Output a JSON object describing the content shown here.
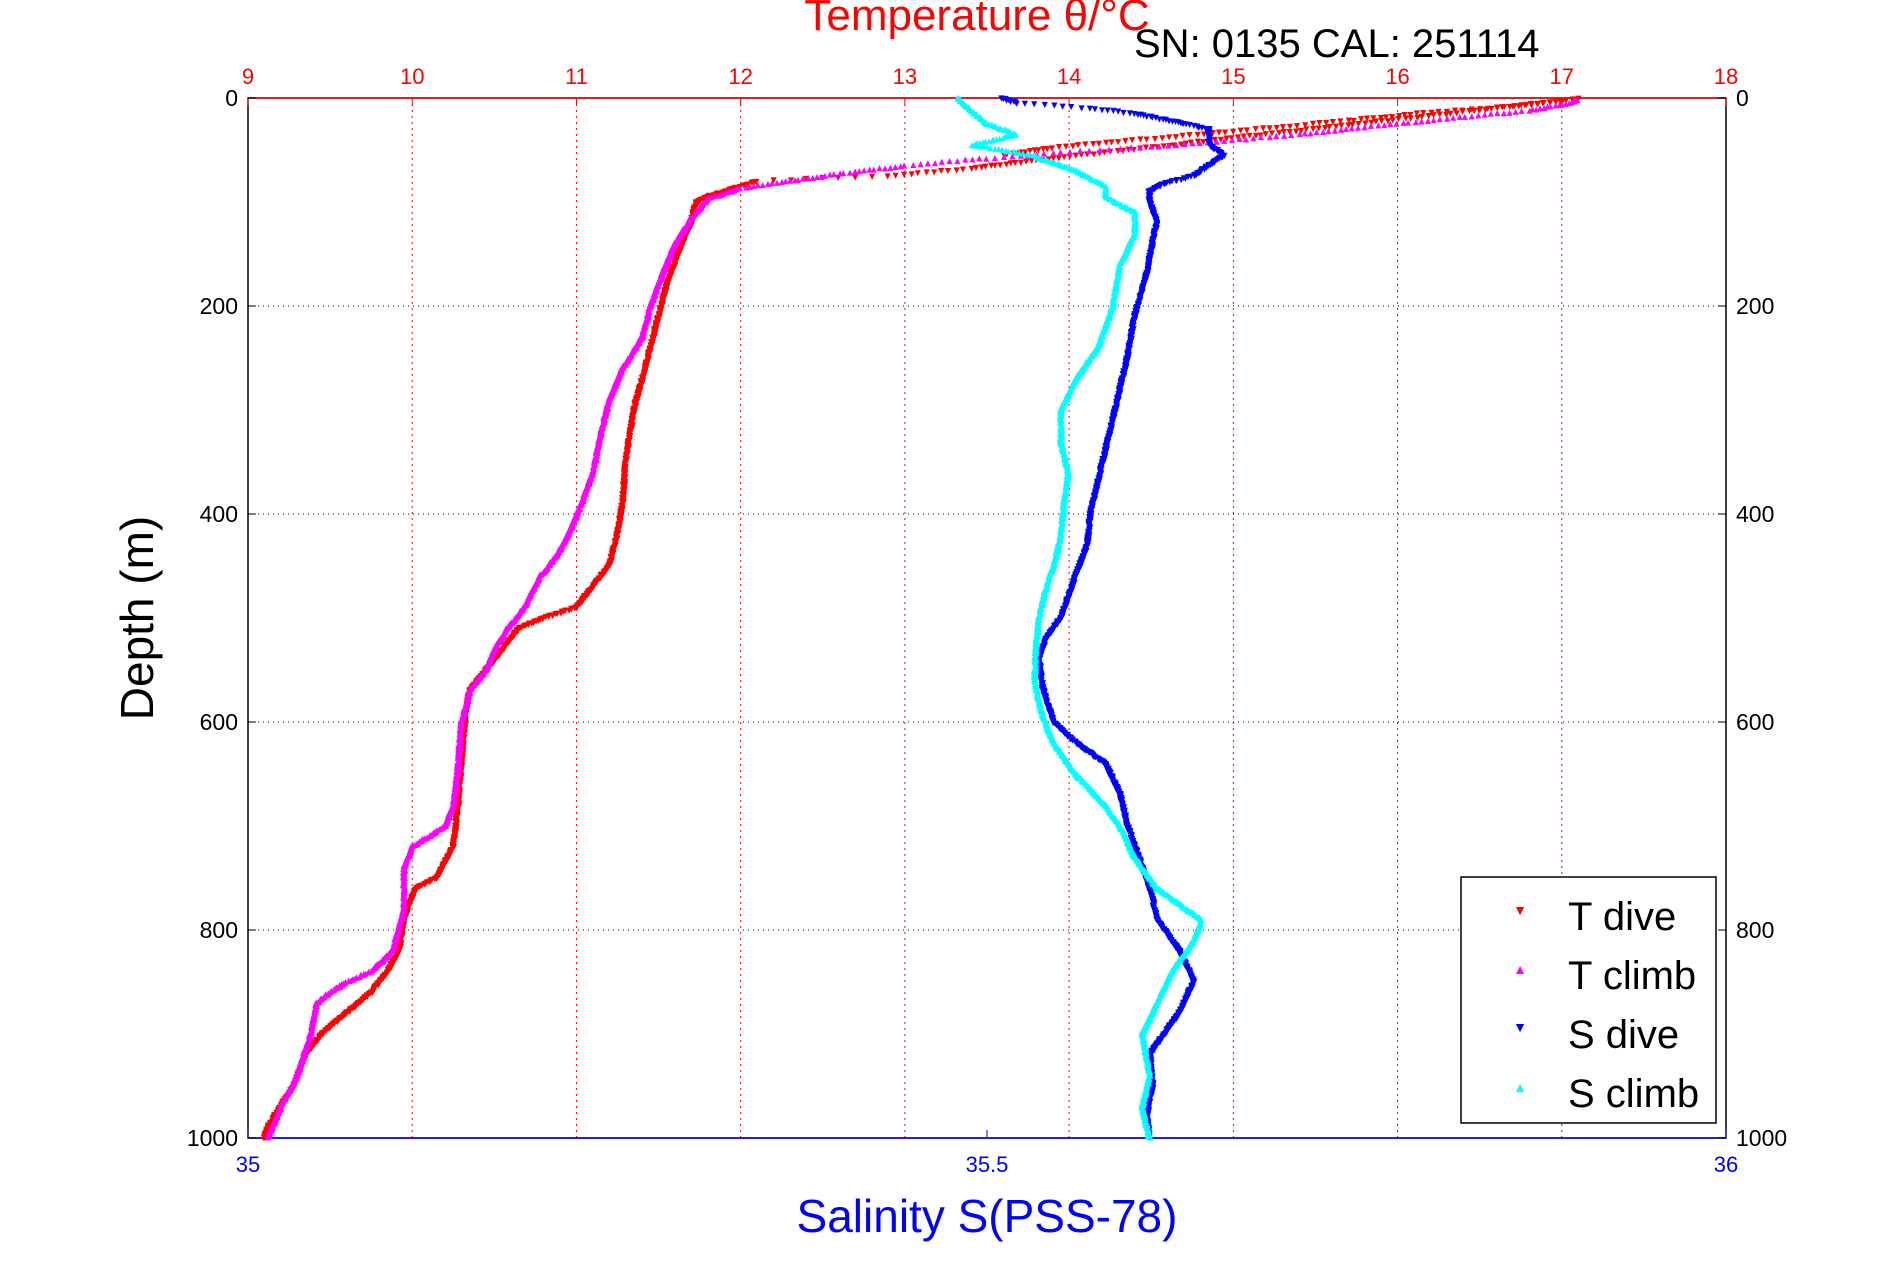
{
  "chart_data": {
    "type": "scatter",
    "title": "Temperature θ/°C",
    "subtitle": "SN: 0135  CAL: 251114",
    "ylabel": "Depth (m)",
    "xlabel": "Salinity S(PSS-78)",
    "ylim": [
      1000,
      0
    ],
    "yticks": [
      0,
      200,
      400,
      600,
      800,
      1000
    ],
    "ytick_labels": [
      "0",
      "200",
      "400",
      "600",
      "800",
      "1000"
    ],
    "x_top": {
      "quantity": "Temperature",
      "lim": [
        9,
        18
      ],
      "ticks": [
        9,
        10,
        11,
        12,
        13,
        14,
        15,
        16,
        17,
        18
      ],
      "tick_labels": [
        "9",
        "10",
        "11",
        "12",
        "13",
        "14",
        "15",
        "16",
        "17",
        "18"
      ],
      "color": "#ff0000"
    },
    "x_bottom": {
      "quantity": "Salinity",
      "lim": [
        35,
        36
      ],
      "ticks": [
        35,
        35.5,
        36
      ],
      "tick_labels": [
        "35",
        "35.5",
        "36"
      ],
      "color": "#0000ff"
    },
    "grid": true,
    "legend_position": "bottom-right",
    "series": [
      {
        "name": "T dive",
        "axis": "top",
        "color": "#ff0000",
        "marker": "triangle-down",
        "points": [
          [
            13.6,
            55
          ],
          [
            13.9,
            48
          ],
          [
            14.3,
            42
          ],
          [
            15.0,
            32
          ],
          [
            15.7,
            22
          ],
          [
            16.2,
            14
          ],
          [
            16.7,
            8
          ],
          [
            17.0,
            3
          ],
          [
            17.1,
            1
          ],
          [
            13.8,
            60
          ],
          [
            13.4,
            68
          ],
          [
            12.9,
            75
          ],
          [
            12.4,
            78
          ],
          [
            12.1,
            80
          ],
          [
            12.0,
            85
          ],
          [
            11.8,
            95
          ],
          [
            11.73,
            100
          ],
          [
            11.7,
            120
          ],
          [
            11.62,
            150
          ],
          [
            11.55,
            180
          ],
          [
            11.5,
            210
          ],
          [
            11.42,
            260
          ],
          [
            11.35,
            300
          ],
          [
            11.3,
            350
          ],
          [
            11.28,
            390
          ],
          [
            11.25,
            420
          ],
          [
            11.2,
            450
          ],
          [
            11.1,
            470
          ],
          [
            11.0,
            490
          ],
          [
            10.8,
            500
          ],
          [
            10.65,
            510
          ],
          [
            10.55,
            530
          ],
          [
            10.45,
            550
          ],
          [
            10.35,
            570
          ],
          [
            10.32,
            600
          ],
          [
            10.3,
            640
          ],
          [
            10.28,
            680
          ],
          [
            10.25,
            720
          ],
          [
            10.15,
            750
          ],
          [
            10.02,
            760
          ],
          [
            9.95,
            790
          ],
          [
            9.92,
            820
          ],
          [
            9.85,
            840
          ],
          [
            9.75,
            860
          ],
          [
            9.6,
            880
          ],
          [
            9.45,
            900
          ],
          [
            9.35,
            920
          ],
          [
            9.28,
            950
          ],
          [
            9.2,
            970
          ],
          [
            9.12,
            990
          ],
          [
            9.1,
            1000
          ]
        ]
      },
      {
        "name": "T climb",
        "axis": "top",
        "color": "#ff00ff",
        "marker": "triangle-up",
        "points": [
          [
            17.1,
            2
          ],
          [
            17.05,
            5
          ],
          [
            16.8,
            12
          ],
          [
            16.3,
            20
          ],
          [
            15.8,
            28
          ],
          [
            15.4,
            35
          ],
          [
            14.9,
            42
          ],
          [
            14.5,
            47
          ],
          [
            14.0,
            52
          ],
          [
            13.5,
            58
          ],
          [
            13.0,
            65
          ],
          [
            12.6,
            73
          ],
          [
            12.3,
            80
          ],
          [
            12.0,
            87
          ],
          [
            11.8,
            97
          ],
          [
            11.7,
            115
          ],
          [
            11.6,
            140
          ],
          [
            11.52,
            170
          ],
          [
            11.45,
            200
          ],
          [
            11.4,
            230
          ],
          [
            11.28,
            260
          ],
          [
            11.2,
            290
          ],
          [
            11.15,
            320
          ],
          [
            11.1,
            360
          ],
          [
            11.03,
            390
          ],
          [
            10.95,
            420
          ],
          [
            10.88,
            440
          ],
          [
            10.78,
            460
          ],
          [
            10.68,
            490
          ],
          [
            10.58,
            510
          ],
          [
            10.5,
            530
          ],
          [
            10.45,
            550
          ],
          [
            10.35,
            570
          ],
          [
            10.3,
            600
          ],
          [
            10.28,
            640
          ],
          [
            10.25,
            680
          ],
          [
            10.2,
            700
          ],
          [
            10.0,
            720
          ],
          [
            9.95,
            740
          ],
          [
            9.95,
            780
          ],
          [
            9.88,
            820
          ],
          [
            9.75,
            840
          ],
          [
            9.6,
            850
          ],
          [
            9.5,
            860
          ],
          [
            9.42,
            870
          ],
          [
            9.38,
            900
          ],
          [
            9.3,
            940
          ],
          [
            9.2,
            970
          ],
          [
            9.12,
            1000
          ]
        ]
      },
      {
        "name": "S dive",
        "axis": "bottom",
        "color": "#0000ff",
        "marker": "triangle-down",
        "points": [
          [
            35.51,
            0
          ],
          [
            35.52,
            5
          ],
          [
            35.57,
            10
          ],
          [
            35.6,
            15
          ],
          [
            35.65,
            30
          ],
          [
            35.65,
            45
          ],
          [
            35.66,
            55
          ],
          [
            35.65,
            65
          ],
          [
            35.64,
            75
          ],
          [
            35.62,
            82
          ],
          [
            35.61,
            90
          ],
          [
            35.61,
            100
          ],
          [
            35.615,
            120
          ],
          [
            35.612,
            140
          ],
          [
            35.608,
            170
          ],
          [
            35.6,
            210
          ],
          [
            35.595,
            250
          ],
          [
            35.59,
            280
          ],
          [
            35.585,
            310
          ],
          [
            35.58,
            340
          ],
          [
            35.575,
            370
          ],
          [
            35.57,
            400
          ],
          [
            35.568,
            430
          ],
          [
            35.56,
            460
          ],
          [
            35.555,
            480
          ],
          [
            35.55,
            500
          ],
          [
            35.54,
            520
          ],
          [
            35.535,
            540
          ],
          [
            35.538,
            570
          ],
          [
            35.545,
            600
          ],
          [
            35.56,
            620
          ],
          [
            35.58,
            640
          ],
          [
            35.59,
            670
          ],
          [
            35.595,
            700
          ],
          [
            35.6,
            720
          ],
          [
            35.61,
            760
          ],
          [
            35.615,
            790
          ],
          [
            35.63,
            820
          ],
          [
            35.64,
            850
          ],
          [
            35.63,
            880
          ],
          [
            35.62,
            900
          ],
          [
            35.61,
            920
          ],
          [
            35.612,
            950
          ],
          [
            35.608,
            980
          ],
          [
            35.61,
            1000
          ]
        ]
      },
      {
        "name": "S climb",
        "axis": "bottom",
        "color": "#00ffff",
        "marker": "triangle-up",
        "points": [
          [
            35.48,
            0
          ],
          [
            35.5,
            25
          ],
          [
            35.52,
            35
          ],
          [
            35.49,
            45
          ],
          [
            35.53,
            55
          ],
          [
            35.56,
            70
          ],
          [
            35.58,
            85
          ],
          [
            35.58,
            95
          ],
          [
            35.6,
            110
          ],
          [
            35.6,
            130
          ],
          [
            35.59,
            160
          ],
          [
            35.585,
            200
          ],
          [
            35.575,
            240
          ],
          [
            35.56,
            270
          ],
          [
            35.55,
            300
          ],
          [
            35.55,
            330
          ],
          [
            35.555,
            360
          ],
          [
            35.552,
            390
          ],
          [
            35.55,
            420
          ],
          [
            35.545,
            450
          ],
          [
            35.54,
            470
          ],
          [
            35.535,
            500
          ],
          [
            35.533,
            530
          ],
          [
            35.532,
            560
          ],
          [
            35.537,
            590
          ],
          [
            35.545,
            620
          ],
          [
            35.56,
            650
          ],
          [
            35.58,
            680
          ],
          [
            35.59,
            700
          ],
          [
            35.6,
            730
          ],
          [
            35.615,
            760
          ],
          [
            35.635,
            780
          ],
          [
            35.645,
            790
          ],
          [
            35.64,
            810
          ],
          [
            35.625,
            840
          ],
          [
            35.615,
            870
          ],
          [
            35.605,
            900
          ],
          [
            35.61,
            940
          ],
          [
            35.605,
            970
          ],
          [
            35.61,
            1000
          ]
        ]
      }
    ]
  }
}
